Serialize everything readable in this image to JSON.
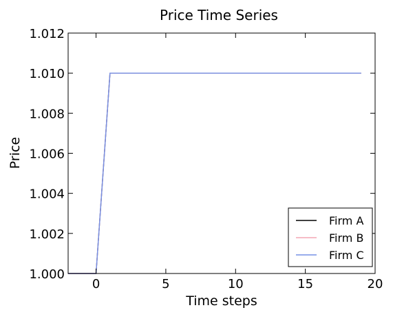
{
  "chart_data": {
    "type": "line",
    "title": "Price Time Series",
    "xlabel": "Time steps",
    "ylabel": "Price",
    "xlim": [
      -2,
      20
    ],
    "ylim": [
      1.0,
      1.012
    ],
    "xticks": [
      0,
      5,
      10,
      15,
      20
    ],
    "xtick_labels": [
      "0",
      "5",
      "10",
      "15",
      "20"
    ],
    "yticks": [
      1.0,
      1.002,
      1.004,
      1.006,
      1.008,
      1.01,
      1.012
    ],
    "ytick_labels": [
      "1.000",
      "1.002",
      "1.004",
      "1.006",
      "1.008",
      "1.010",
      "1.012"
    ],
    "grid": false,
    "legend_position": "lower-right",
    "series": [
      {
        "name": "Firm A",
        "color": "#000000",
        "x": [
          -2,
          -1,
          0,
          1,
          2,
          3,
          4,
          5,
          6,
          7,
          8,
          9,
          10,
          11,
          12,
          13,
          14,
          15,
          16,
          17,
          18,
          19
        ],
        "y": [
          1.0,
          1.0,
          1.0,
          1.01,
          1.01,
          1.01,
          1.01,
          1.01,
          1.01,
          1.01,
          1.01,
          1.01,
          1.01,
          1.01,
          1.01,
          1.01,
          1.01,
          1.01,
          1.01,
          1.01,
          1.01,
          1.01
        ]
      },
      {
        "name": "Firm B",
        "color": "#f4a6b4",
        "x": [
          -2,
          -1,
          0,
          1,
          2,
          3,
          4,
          5,
          6,
          7,
          8,
          9,
          10,
          11,
          12,
          13,
          14,
          15,
          16,
          17,
          18,
          19
        ],
        "y": [
          1.0,
          1.0,
          1.0,
          1.01,
          1.01,
          1.01,
          1.01,
          1.01,
          1.01,
          1.01,
          1.01,
          1.01,
          1.01,
          1.01,
          1.01,
          1.01,
          1.01,
          1.01,
          1.01,
          1.01,
          1.01,
          1.01
        ]
      },
      {
        "name": "Firm C",
        "color": "#7590e6",
        "x": [
          -2,
          -1,
          0,
          1,
          2,
          3,
          4,
          5,
          6,
          7,
          8,
          9,
          10,
          11,
          12,
          13,
          14,
          15,
          16,
          17,
          18,
          19
        ],
        "y": [
          1.0,
          1.0,
          1.0,
          1.01,
          1.01,
          1.01,
          1.01,
          1.01,
          1.01,
          1.01,
          1.01,
          1.01,
          1.01,
          1.01,
          1.01,
          1.01,
          1.01,
          1.01,
          1.01,
          1.01,
          1.01,
          1.01
        ]
      }
    ]
  }
}
